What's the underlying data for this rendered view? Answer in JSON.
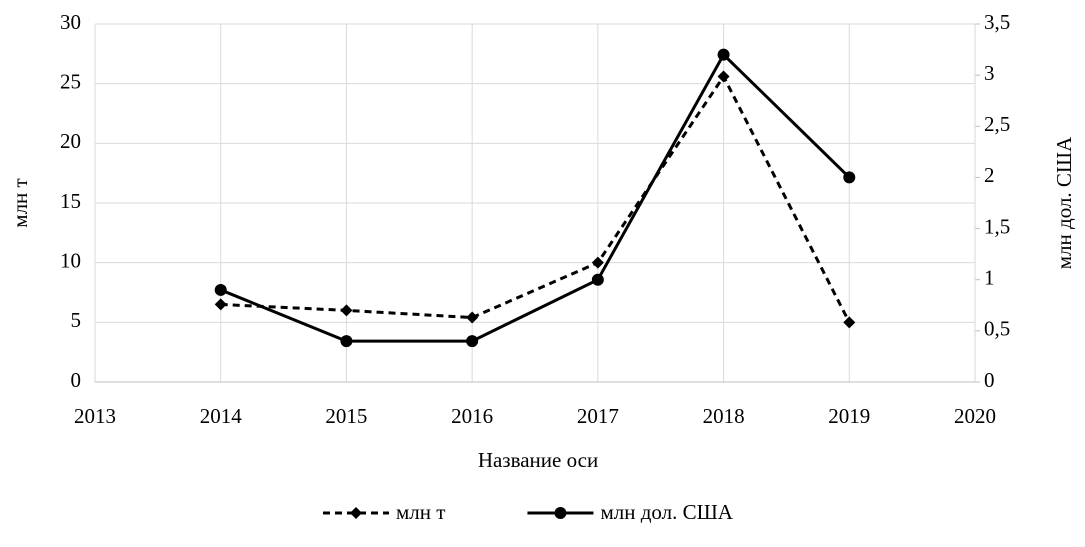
{
  "chart_data": {
    "type": "line",
    "x": [
      2014,
      2015,
      2016,
      2017,
      2018,
      2019
    ],
    "series": [
      {
        "name": "млн т",
        "color": "#000000",
        "line_style": "dashed",
        "marker": "diamond",
        "values": [
          6.5,
          6.0,
          5.4,
          10.0,
          25.6,
          5.0
        ]
      },
      {
        "name": "млн дол. США",
        "color": "#000000",
        "line_style": "solid",
        "marker": "circle",
        "axis": "y2",
        "values": [
          0.9,
          0.4,
          0.4,
          1.0,
          3.2,
          2.0
        ]
      }
    ],
    "xlabel": "Название оси",
    "ylabel": "млн т",
    "y2label": "млн дол. США",
    "xlim": [
      2013,
      2020
    ],
    "xticks": [
      2013,
      2014,
      2015,
      2016,
      2017,
      2018,
      2019,
      2020
    ],
    "ylim": [
      0,
      30
    ],
    "yticks": [
      0,
      5,
      10,
      15,
      20,
      25,
      30
    ],
    "y2lim": [
      0,
      3.5
    ],
    "y2ticks": [
      0,
      {
        "value": 0.5,
        "label": "0,5"
      },
      1,
      {
        "value": 1.5,
        "label": "1,5"
      },
      2,
      {
        "value": 2.5,
        "label": "2,5"
      },
      3,
      {
        "value": 3.5,
        "label": "3,5"
      }
    ],
    "grid": true,
    "legend": "bottom"
  }
}
